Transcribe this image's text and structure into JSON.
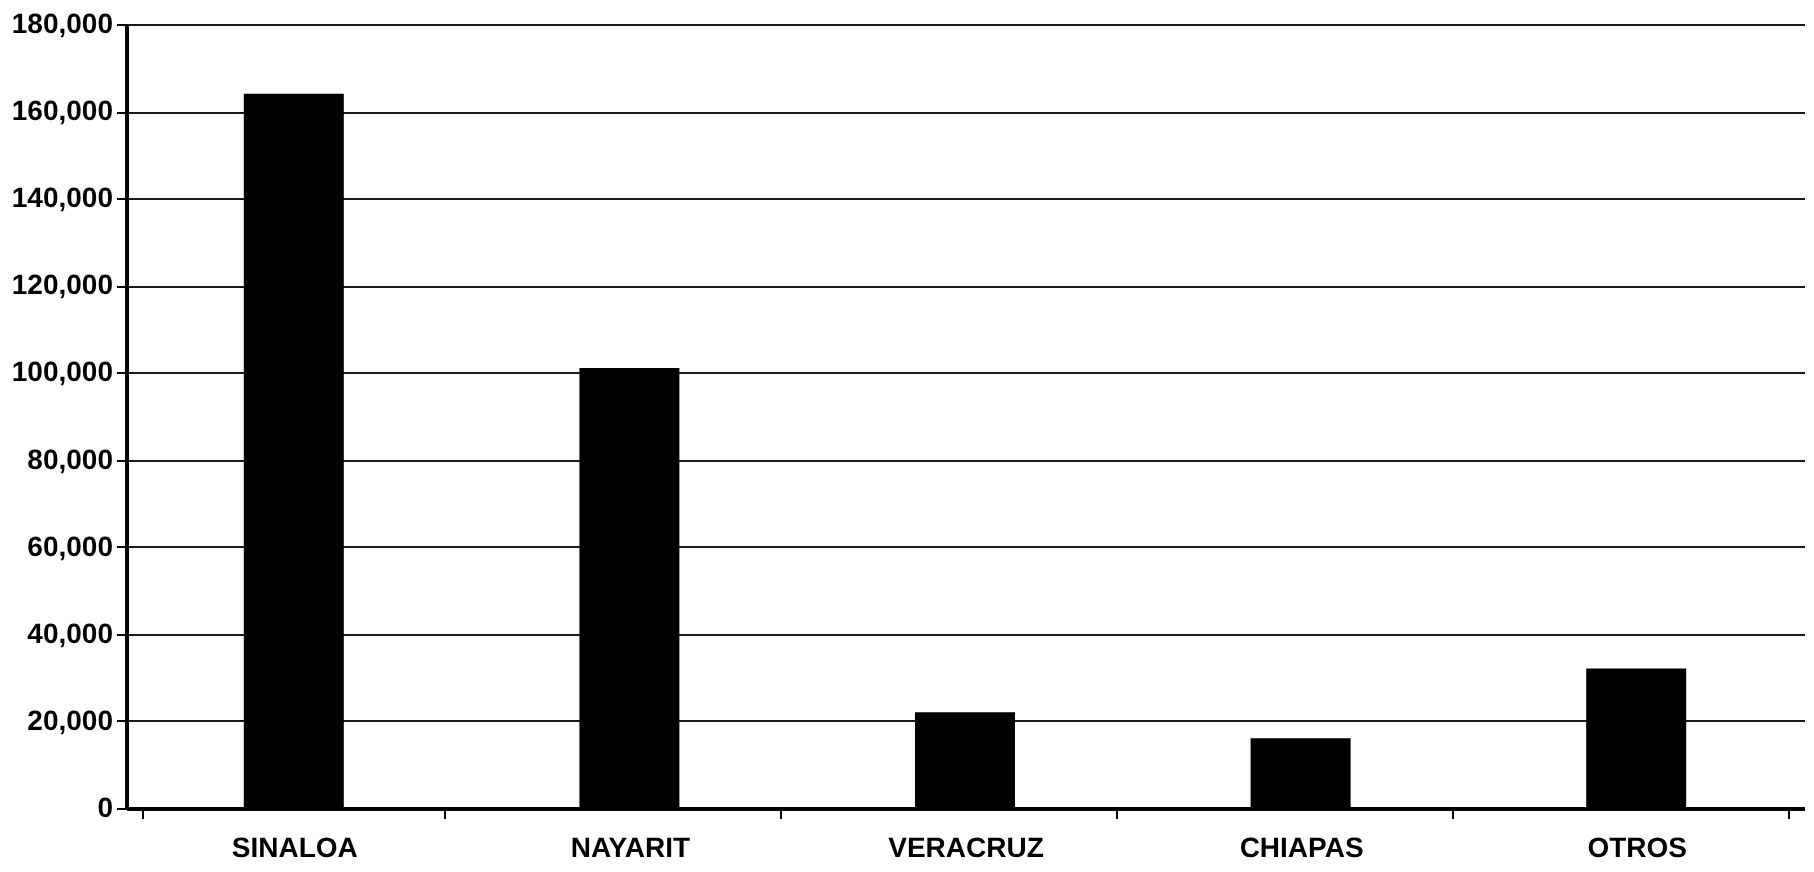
{
  "chart_data": {
    "type": "bar",
    "categories": [
      "SINALOA",
      "NAYARIT",
      "VERACRUZ",
      "CHIAPAS",
      "OTROS"
    ],
    "values": [
      164000,
      101000,
      22000,
      16000,
      32000
    ],
    "color": "#000000",
    "ylim": [
      0,
      180000
    ],
    "yticks": [
      {
        "value": 0,
        "label": "0"
      },
      {
        "value": 20000,
        "label": "20,000"
      },
      {
        "value": 40000,
        "label": "40,000"
      },
      {
        "value": 60000,
        "label": "60,000"
      },
      {
        "value": 80000,
        "label": "80,000"
      },
      {
        "value": 100000,
        "label": "100,000"
      },
      {
        "value": 120000,
        "label": "120,000"
      },
      {
        "value": 140000,
        "label": "140,000"
      },
      {
        "value": 160000,
        "label": "160,000"
      },
      {
        "value": 180000,
        "label": "180,000"
      }
    ],
    "grid": "y"
  }
}
